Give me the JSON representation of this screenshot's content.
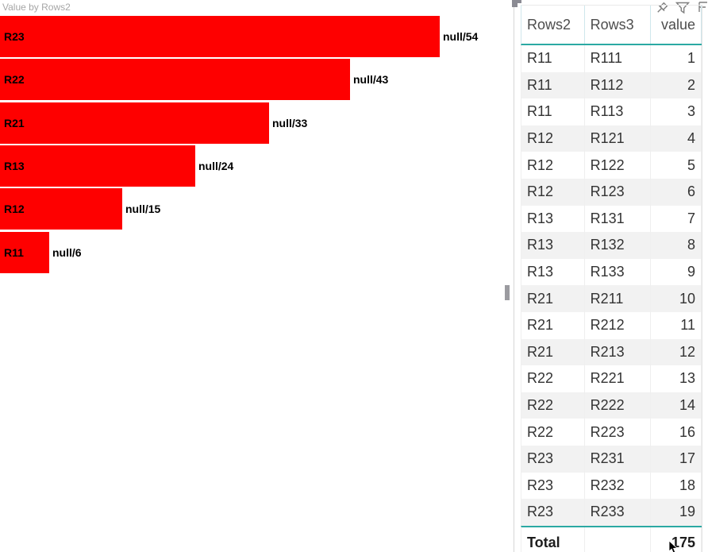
{
  "chart_data": {
    "type": "bar",
    "orientation": "horizontal",
    "title": "Value by Rows2",
    "categories": [
      "R23",
      "R22",
      "R21",
      "R13",
      "R12",
      "R11"
    ],
    "values": [
      54,
      43,
      33,
      24,
      15,
      6
    ],
    "data_labels": [
      "null/54",
      "null/43",
      "null/33",
      "null/24",
      "null/15",
      "null/6"
    ],
    "xlim": [
      0,
      54
    ],
    "legend": "none",
    "grid": false,
    "bar_color": "#fe0000"
  },
  "chart": {
    "title": "Value by Rows2"
  },
  "table": {
    "columns": [
      {
        "label": "Rows2",
        "align": "left"
      },
      {
        "label": "Rows3",
        "align": "left"
      },
      {
        "label": "value",
        "align": "right"
      }
    ],
    "rows": [
      [
        "R11",
        "R111",
        "1"
      ],
      [
        "R11",
        "R112",
        "2"
      ],
      [
        "R11",
        "R113",
        "3"
      ],
      [
        "R12",
        "R121",
        "4"
      ],
      [
        "R12",
        "R122",
        "5"
      ],
      [
        "R12",
        "R123",
        "6"
      ],
      [
        "R13",
        "R131",
        "7"
      ],
      [
        "R13",
        "R132",
        "8"
      ],
      [
        "R13",
        "R133",
        "9"
      ],
      [
        "R21",
        "R211",
        "10"
      ],
      [
        "R21",
        "R212",
        "11"
      ],
      [
        "R21",
        "R213",
        "12"
      ],
      [
        "R22",
        "R221",
        "13"
      ],
      [
        "R22",
        "R222",
        "14"
      ],
      [
        "R22",
        "R223",
        "16"
      ],
      [
        "R23",
        "R231",
        "17"
      ],
      [
        "R23",
        "R232",
        "18"
      ],
      [
        "R23",
        "R233",
        "19"
      ]
    ],
    "total": {
      "label": "Total",
      "value": "175"
    }
  },
  "colors": {
    "bar": "#fe0000",
    "chart_title": "#a6a6a6",
    "teal_border": "#2ba9a3",
    "row_alt": "#f2f2f2",
    "header_text": "#4d4d4d",
    "cell_text": "#333333"
  }
}
